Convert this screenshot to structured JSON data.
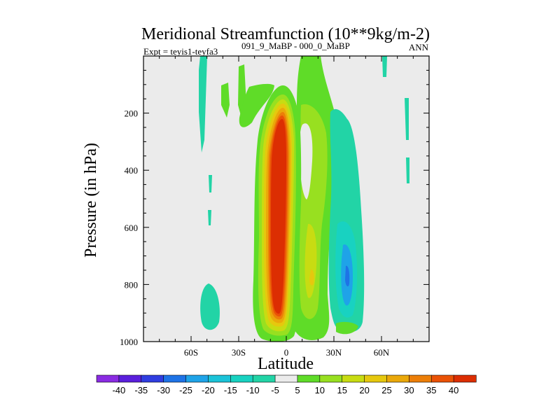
{
  "chart_data": {
    "type": "heatmap",
    "title": "Meridional Streamfunction (10**9kg/m-2)",
    "subtitle_left": "Expt = teyis1-teyfa3",
    "subtitle_sup": "091_9_MaBP - 000_0_MaBP",
    "subtitle_right": "ANN",
    "xlabel": "Latitude",
    "ylabel": "Pressure (in hPa)",
    "xlim": [
      -90,
      90
    ],
    "ylim": [
      0,
      1000
    ],
    "x_ticks": [
      {
        "value": -60,
        "label": "60S"
      },
      {
        "value": -30,
        "label": "30S"
      },
      {
        "value": 0,
        "label": "0"
      },
      {
        "value": 30,
        "label": "30N"
      },
      {
        "value": 60,
        "label": "60N"
      }
    ],
    "y_ticks": [
      {
        "value": 200,
        "label": "200"
      },
      {
        "value": 400,
        "label": "400"
      },
      {
        "value": 600,
        "label": "600"
      },
      {
        "value": 800,
        "label": "800"
      },
      {
        "value": 1000,
        "label": "1000"
      }
    ],
    "colorbar": {
      "levels": [
        "-40",
        "-35",
        "-30",
        "-25",
        "-20",
        "-15",
        "-10",
        "-5",
        "5",
        "10",
        "15",
        "20",
        "25",
        "30",
        "35",
        "40"
      ],
      "colors": [
        "#8a2be2",
        "#5a1fdc",
        "#2f3de0",
        "#1e73e6",
        "#1fa3e8",
        "#1bc3d8",
        "#18d2c1",
        "#22d4a6",
        "#ebebeb",
        "#5fdc28",
        "#98e020",
        "#c8dc12",
        "#e6c80e",
        "#eaa80a",
        "#ec7e08",
        "#ea5206",
        "#dc2e02"
      ]
    },
    "features": [
      {
        "name": "Hadley cell core (northern)",
        "level": 40,
        "lat_center": -3,
        "p_top": 120,
        "p_bottom": 990
      },
      {
        "name": "NH subtropical positive band",
        "level": 10,
        "lat_center": 20,
        "p_top": 60,
        "p_bottom": 980
      },
      {
        "name": "NH mid-latitude negative cell",
        "level": -20,
        "lat_center": 40,
        "p_top": 300,
        "p_bottom": 990
      },
      {
        "name": "SH mid-latitude negative patch",
        "level": -5,
        "lat_center": -47,
        "p_top": 780,
        "p_bottom": 960
      }
    ]
  }
}
